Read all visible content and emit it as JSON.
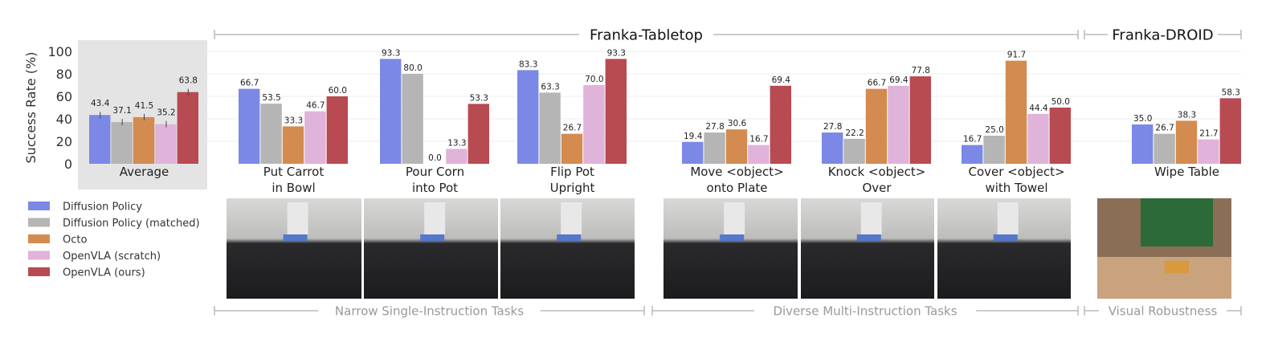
{
  "chart_data": {
    "type": "bar",
    "ylabel": "Success Rate (%)",
    "ylim": [
      0,
      100
    ],
    "yticks": [
      0,
      20,
      40,
      60,
      80,
      100
    ],
    "grid": true,
    "legend_position": "bottom-left",
    "categories": [
      "Average",
      "Put Carrot\nin Bowl",
      "Pour Corn\ninto Pot",
      "Flip Pot\nUpright",
      "Move <object>\nonto Plate",
      "Knock <object>\nOver",
      "Cover <object>\nwith Towel",
      "Wipe Table"
    ],
    "series": [
      {
        "name": "Diffusion Policy",
        "color": "#7b88e6",
        "values": [
          43.4,
          66.7,
          93.3,
          83.3,
          19.4,
          27.8,
          16.7,
          35.0
        ]
      },
      {
        "name": "Diffusion Policy (matched)",
        "color": "#b5b5b5",
        "values": [
          37.1,
          53.5,
          80.0,
          63.3,
          27.8,
          22.2,
          25.0,
          26.7
        ]
      },
      {
        "name": "Octo",
        "color": "#d38b4f",
        "values": [
          41.5,
          33.3,
          0.0,
          26.7,
          30.6,
          66.7,
          91.7,
          38.3
        ]
      },
      {
        "name": "OpenVLA (scratch)",
        "color": "#e0b3da",
        "values": [
          35.2,
          46.7,
          13.3,
          70.0,
          16.7,
          69.4,
          44.4,
          21.7
        ]
      },
      {
        "name": "OpenVLA (ours)",
        "color": "#b84a52",
        "values": [
          63.8,
          60.0,
          53.3,
          93.3,
          69.4,
          77.8,
          50.0,
          58.3
        ]
      }
    ],
    "top_groups": [
      "Franka-Tabletop",
      "Franka-DROID"
    ],
    "bottom_groups": [
      "Narrow Single-Instruction Tasks",
      "Diverse Multi-Instruction Tasks",
      "Visual Robustness"
    ]
  }
}
